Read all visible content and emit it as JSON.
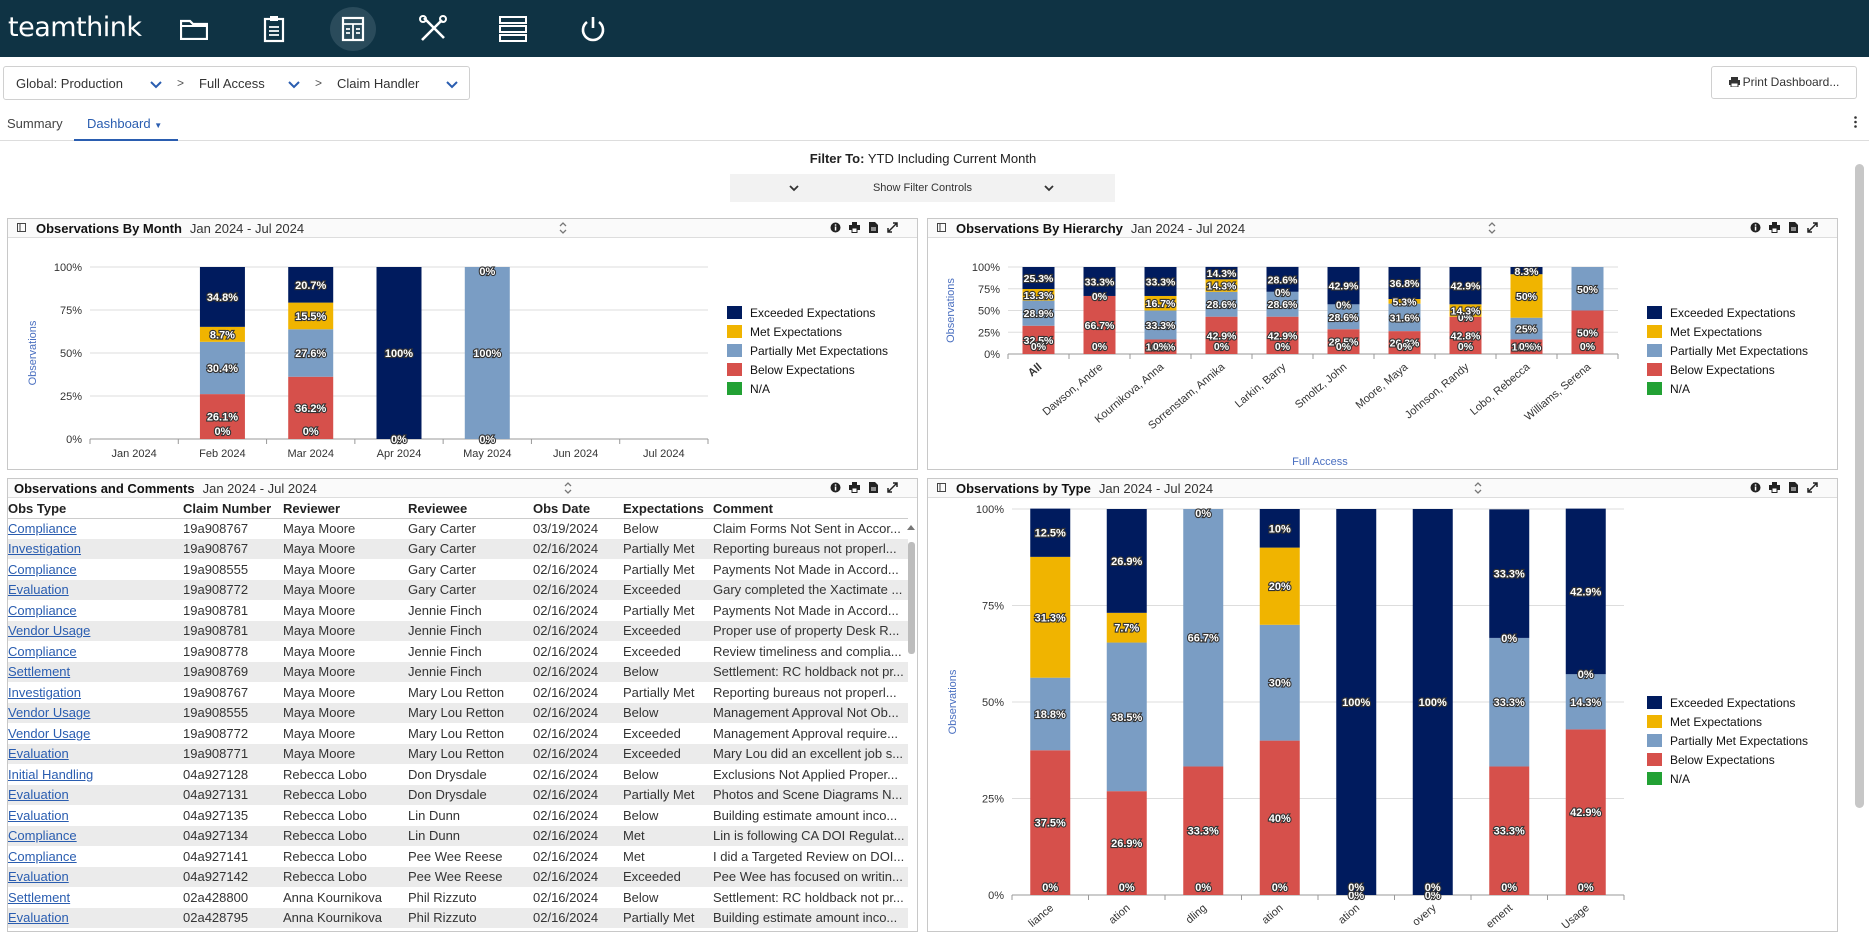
{
  "app": {
    "logo": "teamthink"
  },
  "nav_icons": [
    "folder-icon",
    "clipboard-icon",
    "dashboard-icon",
    "tools-icon",
    "server-icon",
    "power-icon"
  ],
  "breadcrumb": {
    "items": [
      "Global: Production",
      "Full Access",
      "Claim Handler"
    ]
  },
  "print_label": "Print Dashboard...",
  "tabs": {
    "summary": "Summary",
    "dashboard": "Dashboard"
  },
  "filter": {
    "label": "Filter To:",
    "value": "YTD Including Current Month",
    "toggle": "Show Filter Controls"
  },
  "colors": {
    "exceeded": "#001b5e",
    "met": "#f0b400",
    "partial": "#7a9dc4",
    "below": "#d6504b",
    "na": "#22a134"
  },
  "legend": [
    "Exceeded Expectations",
    "Met Expectations",
    "Partially Met Expectations",
    "Below Expectations",
    "N/A"
  ],
  "panels": {
    "by_month": {
      "title": "Observations By Month",
      "range": "Jan 2024 - Jul 2024"
    },
    "by_hierarchy": {
      "title": "Observations By Hierarchy",
      "range": "Jan 2024 - Jul 2024"
    },
    "comments": {
      "title": "Observations and Comments",
      "range": "Jan 2024 - Jul 2024"
    },
    "by_type": {
      "title": "Observations by Type",
      "range": "Jan 2024 - Jul 2024"
    }
  },
  "chart_data": [
    {
      "type": "bar",
      "id": "by_month",
      "stacked": true,
      "ylabel": "Observations",
      "yticks": [
        "0%",
        "25%",
        "50%",
        "75%",
        "100%"
      ],
      "categories": [
        "Jan 2024",
        "Feb 2024",
        "Mar 2024",
        "Apr 2024",
        "May 2024",
        "Jun 2024",
        "Jul 2024"
      ],
      "series": [
        {
          "name": "Below Expectations",
          "values": [
            null,
            26.1,
            36.2,
            0,
            0,
            null,
            null
          ],
          "labels": [
            "",
            "26.1%",
            "36.2%",
            "0%",
            "0%",
            "",
            ""
          ]
        },
        {
          "name": "Partially Met Expectations",
          "values": [
            null,
            30.4,
            27.6,
            0,
            100,
            null,
            null
          ],
          "labels": [
            "",
            "30.4%",
            "27.6%",
            "",
            "100%",
            "",
            ""
          ]
        },
        {
          "name": "Met Expectations",
          "values": [
            null,
            8.7,
            15.5,
            0,
            0,
            null,
            null
          ],
          "labels": [
            "",
            "8.7%",
            "15.5%",
            "",
            "",
            "",
            ""
          ]
        },
        {
          "name": "Exceeded Expectations",
          "values": [
            null,
            34.8,
            20.7,
            100,
            0,
            null,
            null
          ],
          "labels": [
            "",
            "34.8%",
            "20.7%",
            "100%",
            "0%",
            "",
            ""
          ]
        }
      ],
      "extra_labels": [
        [
          "",
          "0%",
          "0%",
          "",
          "",
          "",
          ""
        ]
      ]
    },
    {
      "type": "bar",
      "id": "by_hierarchy",
      "stacked": true,
      "ylabel": "Observations",
      "xlabel": "Full Access",
      "yticks": [
        "0%",
        "25%",
        "50%",
        "75%",
        "100%"
      ],
      "categories": [
        "All",
        "Dawson, Andre",
        "Kournikova, Anna",
        "Sorrenstam, Annika",
        "Larkin, Barry",
        "Smoltz, John",
        "Moore, Maya",
        "Johnson, Randy",
        "Lobo, Rebecca",
        "Williams, Serena"
      ],
      "series": [
        {
          "name": "Below Expectations",
          "values": [
            32.5,
            66.7,
            16.7,
            42.9,
            42.9,
            28.5,
            26.3,
            42.8,
            16.7,
            50
          ],
          "labels": [
            "32.5%",
            "66.7%",
            "16.7%",
            "42.9%",
            "42.9%",
            "28.5%",
            "26.3%",
            "42.8%",
            "16.7%",
            "50%"
          ]
        },
        {
          "name": "Partially Met Expectations",
          "values": [
            28.9,
            0,
            33.3,
            28.6,
            28.6,
            28.6,
            31.6,
            0,
            25,
            50
          ],
          "labels": [
            "28.9%",
            "",
            "33.3%",
            "28.6%",
            "28.6%",
            "28.6%",
            "31.6%",
            "0%",
            "25%",
            "50%"
          ]
        },
        {
          "name": "Met Expectations",
          "values": [
            13.3,
            0,
            16.7,
            14.3,
            0,
            0,
            5.3,
            14.3,
            50,
            0
          ],
          "labels": [
            "13.3%",
            "0%",
            "16.7%",
            "14.3%",
            "0%",
            "0%",
            "5.3%",
            "14.3%",
            "50%",
            ""
          ]
        },
        {
          "name": "Exceeded Expectations",
          "values": [
            25.3,
            33.3,
            33.3,
            14.3,
            28.6,
            42.9,
            36.8,
            42.9,
            8.3,
            0
          ],
          "labels": [
            "25.3%",
            "33.3%",
            "33.3%",
            "14.3%",
            "28.6%",
            "42.9%",
            "36.8%",
            "42.9%",
            "8.3%",
            ""
          ]
        }
      ],
      "extra_labels": [
        [
          "0%",
          "0%",
          "0%",
          "0%",
          "0%",
          "0%",
          "0%",
          "0%",
          "0%",
          "0%"
        ]
      ]
    },
    {
      "type": "bar",
      "id": "by_type",
      "stacked": true,
      "ylabel": "Observations",
      "yticks": [
        "0%",
        "25%",
        "50%",
        "75%",
        "100%"
      ],
      "categories": [
        "liance",
        "ation",
        "dling",
        "ation",
        "ation",
        "overy",
        "ement",
        "Usage"
      ],
      "series": [
        {
          "name": "Below Expectations",
          "values": [
            37.5,
            26.9,
            33.3,
            40,
            0,
            0,
            33.3,
            42.9
          ],
          "labels": [
            "37.5%",
            "26.9%",
            "33.3%",
            "40%",
            "0%",
            "0%",
            "33.3%",
            "42.9%"
          ]
        },
        {
          "name": "Partially Met Expectations",
          "values": [
            18.8,
            38.5,
            66.7,
            30,
            0,
            0,
            33.3,
            14.3
          ],
          "labels": [
            "18.8%",
            "38.5%",
            "66.7%",
            "30%",
            "",
            "",
            "33.3%",
            "14.3%"
          ]
        },
        {
          "name": "Met Expectations",
          "values": [
            31.3,
            7.7,
            0,
            20,
            0,
            0,
            0,
            0
          ],
          "labels": [
            "31.3%",
            "7.7%",
            "0%",
            "20%",
            "",
            "",
            "0%",
            "0%"
          ]
        },
        {
          "name": "Exceeded Expectations",
          "values": [
            12.5,
            26.9,
            0,
            10,
            100,
            100,
            33.3,
            42.9
          ],
          "labels": [
            "12.5%",
            "26.9%",
            "",
            "10%",
            "100%",
            "100%",
            "33.3%",
            "42.9%"
          ]
        }
      ],
      "extra_labels": [
        [
          "0%",
          "0%",
          "0%",
          "0%",
          "0%",
          "0%",
          "0%",
          "0%"
        ]
      ]
    }
  ],
  "table": {
    "columns": [
      "Obs Type",
      "Claim Number",
      "Reviewer",
      "Reviewee",
      "Obs Date",
      "Expectations",
      "Comment"
    ],
    "rows": [
      [
        "Compliance",
        "19a908767",
        "Maya Moore",
        "Gary Carter",
        "03/19/2024",
        "Below",
        "Claim Forms Not Sent in Accor..."
      ],
      [
        "Investigation",
        "19a908767",
        "Maya Moore",
        "Gary Carter",
        "02/16/2024",
        "Partially Met",
        "Reporting bureaus not properl..."
      ],
      [
        "Compliance",
        "19a908555",
        "Maya Moore",
        "Gary Carter",
        "02/16/2024",
        "Partially Met",
        "Payments Not Made in Accord..."
      ],
      [
        "Evaluation",
        "19a908772",
        "Maya Moore",
        "Gary Carter",
        "02/16/2024",
        "Exceeded",
        "Gary completed the Xactimate ..."
      ],
      [
        "Compliance",
        "19a908781",
        "Maya Moore",
        "Jennie Finch",
        "02/16/2024",
        "Partially Met",
        "Payments Not Made in Accord..."
      ],
      [
        "Vendor Usage",
        "19a908781",
        "Maya Moore",
        "Jennie Finch",
        "02/16/2024",
        "Exceeded",
        "Proper use of property Desk R..."
      ],
      [
        "Compliance",
        "19a908778",
        "Maya Moore",
        "Jennie Finch",
        "02/16/2024",
        "Exceeded",
        "Review timeliness and complia..."
      ],
      [
        "Settlement",
        "19a908769",
        "Maya Moore",
        "Jennie Finch",
        "02/16/2024",
        "Below",
        "Settlement: RC holdback not pr..."
      ],
      [
        "Investigation",
        "19a908767",
        "Maya Moore",
        "Mary Lou Retton",
        "02/16/2024",
        "Partially Met",
        "Reporting bureaus not properl..."
      ],
      [
        "Vendor Usage",
        "19a908555",
        "Maya Moore",
        "Mary Lou Retton",
        "02/16/2024",
        "Below",
        "Management Approval Not Ob..."
      ],
      [
        "Vendor Usage",
        "19a908772",
        "Maya Moore",
        "Mary Lou Retton",
        "02/16/2024",
        "Exceeded",
        "Management Approval require..."
      ],
      [
        "Evaluation",
        "19a908771",
        "Maya Moore",
        "Mary Lou Retton",
        "02/16/2024",
        "Exceeded",
        "Mary Lou did an excellent job s..."
      ],
      [
        "Initial Handling",
        "04a927128",
        "Rebecca Lobo",
        "Don Drysdale",
        "02/16/2024",
        "Below",
        "Exclusions Not Applied Proper..."
      ],
      [
        "Evaluation",
        "04a927131",
        "Rebecca Lobo",
        "Don Drysdale",
        "02/16/2024",
        "Partially Met",
        "Photos and Scene Diagrams N..."
      ],
      [
        "Evaluation",
        "04a927135",
        "Rebecca Lobo",
        "Lin Dunn",
        "02/16/2024",
        "Below",
        "Building estimate amount inco..."
      ],
      [
        "Compliance",
        "04a927134",
        "Rebecca Lobo",
        "Lin Dunn",
        "02/16/2024",
        "Met",
        "Lin is following CA DOI Regulat..."
      ],
      [
        "Compliance",
        "04a927141",
        "Rebecca Lobo",
        "Pee Wee Reese",
        "02/16/2024",
        "Met",
        "I did a Targeted Review on DOI..."
      ],
      [
        "Evaluation",
        "04a927142",
        "Rebecca Lobo",
        "Pee Wee Reese",
        "02/16/2024",
        "Exceeded",
        "Pee Wee has focused on writin..."
      ],
      [
        "Settlement",
        "02a428800",
        "Anna Kournikova",
        "Phil Rizzuto",
        "02/16/2024",
        "Below",
        "Settlement: RC holdback not pr..."
      ],
      [
        "Evaluation",
        "02a428795",
        "Anna Kournikova",
        "Phil Rizzuto",
        "02/16/2024",
        "Partially Met",
        "Building estimate amount inco..."
      ]
    ]
  }
}
